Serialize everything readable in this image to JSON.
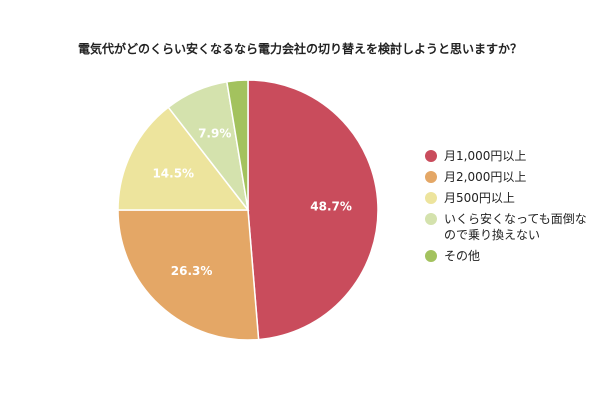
{
  "chart_data": {
    "type": "pie",
    "title": "電気代がどのくらい安くなるなら電力会社の切り替えを検討しようと思いますか？",
    "categories": [
      "月1,000円以上",
      "月2,000円以上",
      "月500円以上",
      "いくら安くなっても面倒なので乗り換えない",
      "その他"
    ],
    "values": [
      48.7,
      26.3,
      14.5,
      7.9,
      2.6
    ],
    "value_labels": [
      "48.7%",
      "26.3%",
      "14.5%",
      "7.9%",
      ""
    ],
    "colors": [
      "#c94c5c",
      "#e4a766",
      "#ede49d",
      "#d4e2ad",
      "#a3c25e"
    ],
    "legend_placement": "right",
    "legend_labels": [
      "月1,000円以上",
      "月2,000円以上",
      "月500円以上",
      "いくら安くなっても面倒なので乗り換えない",
      "その他"
    ]
  }
}
